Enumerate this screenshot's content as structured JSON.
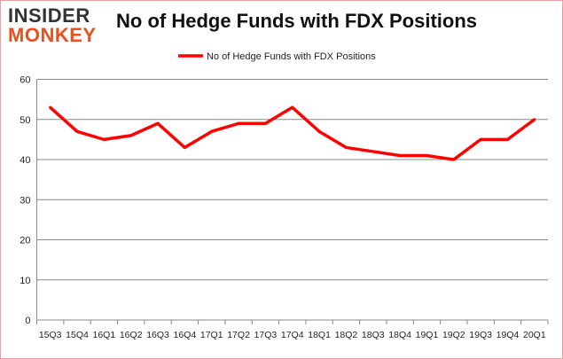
{
  "logo": {
    "line1": "INSIDER",
    "line2": "MONKEY"
  },
  "chart_data": {
    "type": "line",
    "title": "No of Hedge Funds with FDX Positions",
    "categories": [
      "15Q3",
      "15Q4",
      "16Q1",
      "16Q2",
      "16Q3",
      "16Q4",
      "17Q1",
      "17Q2",
      "17Q3",
      "17Q4",
      "18Q1",
      "18Q2",
      "18Q3",
      "18Q4",
      "19Q1",
      "19Q2",
      "19Q3",
      "19Q4",
      "20Q1"
    ],
    "series": [
      {
        "name": "No of Hedge Funds with FDX Positions",
        "values": [
          53,
          47,
          45,
          46,
          49,
          43,
          47,
          49,
          49,
          53,
          47,
          43,
          42,
          41,
          41,
          40,
          45,
          45,
          50
        ],
        "color": "#ff0000"
      }
    ],
    "ylim": [
      0,
      60
    ],
    "yticks": [
      0,
      10,
      20,
      30,
      40,
      50,
      60
    ],
    "grid": true,
    "legend": "top-center"
  }
}
